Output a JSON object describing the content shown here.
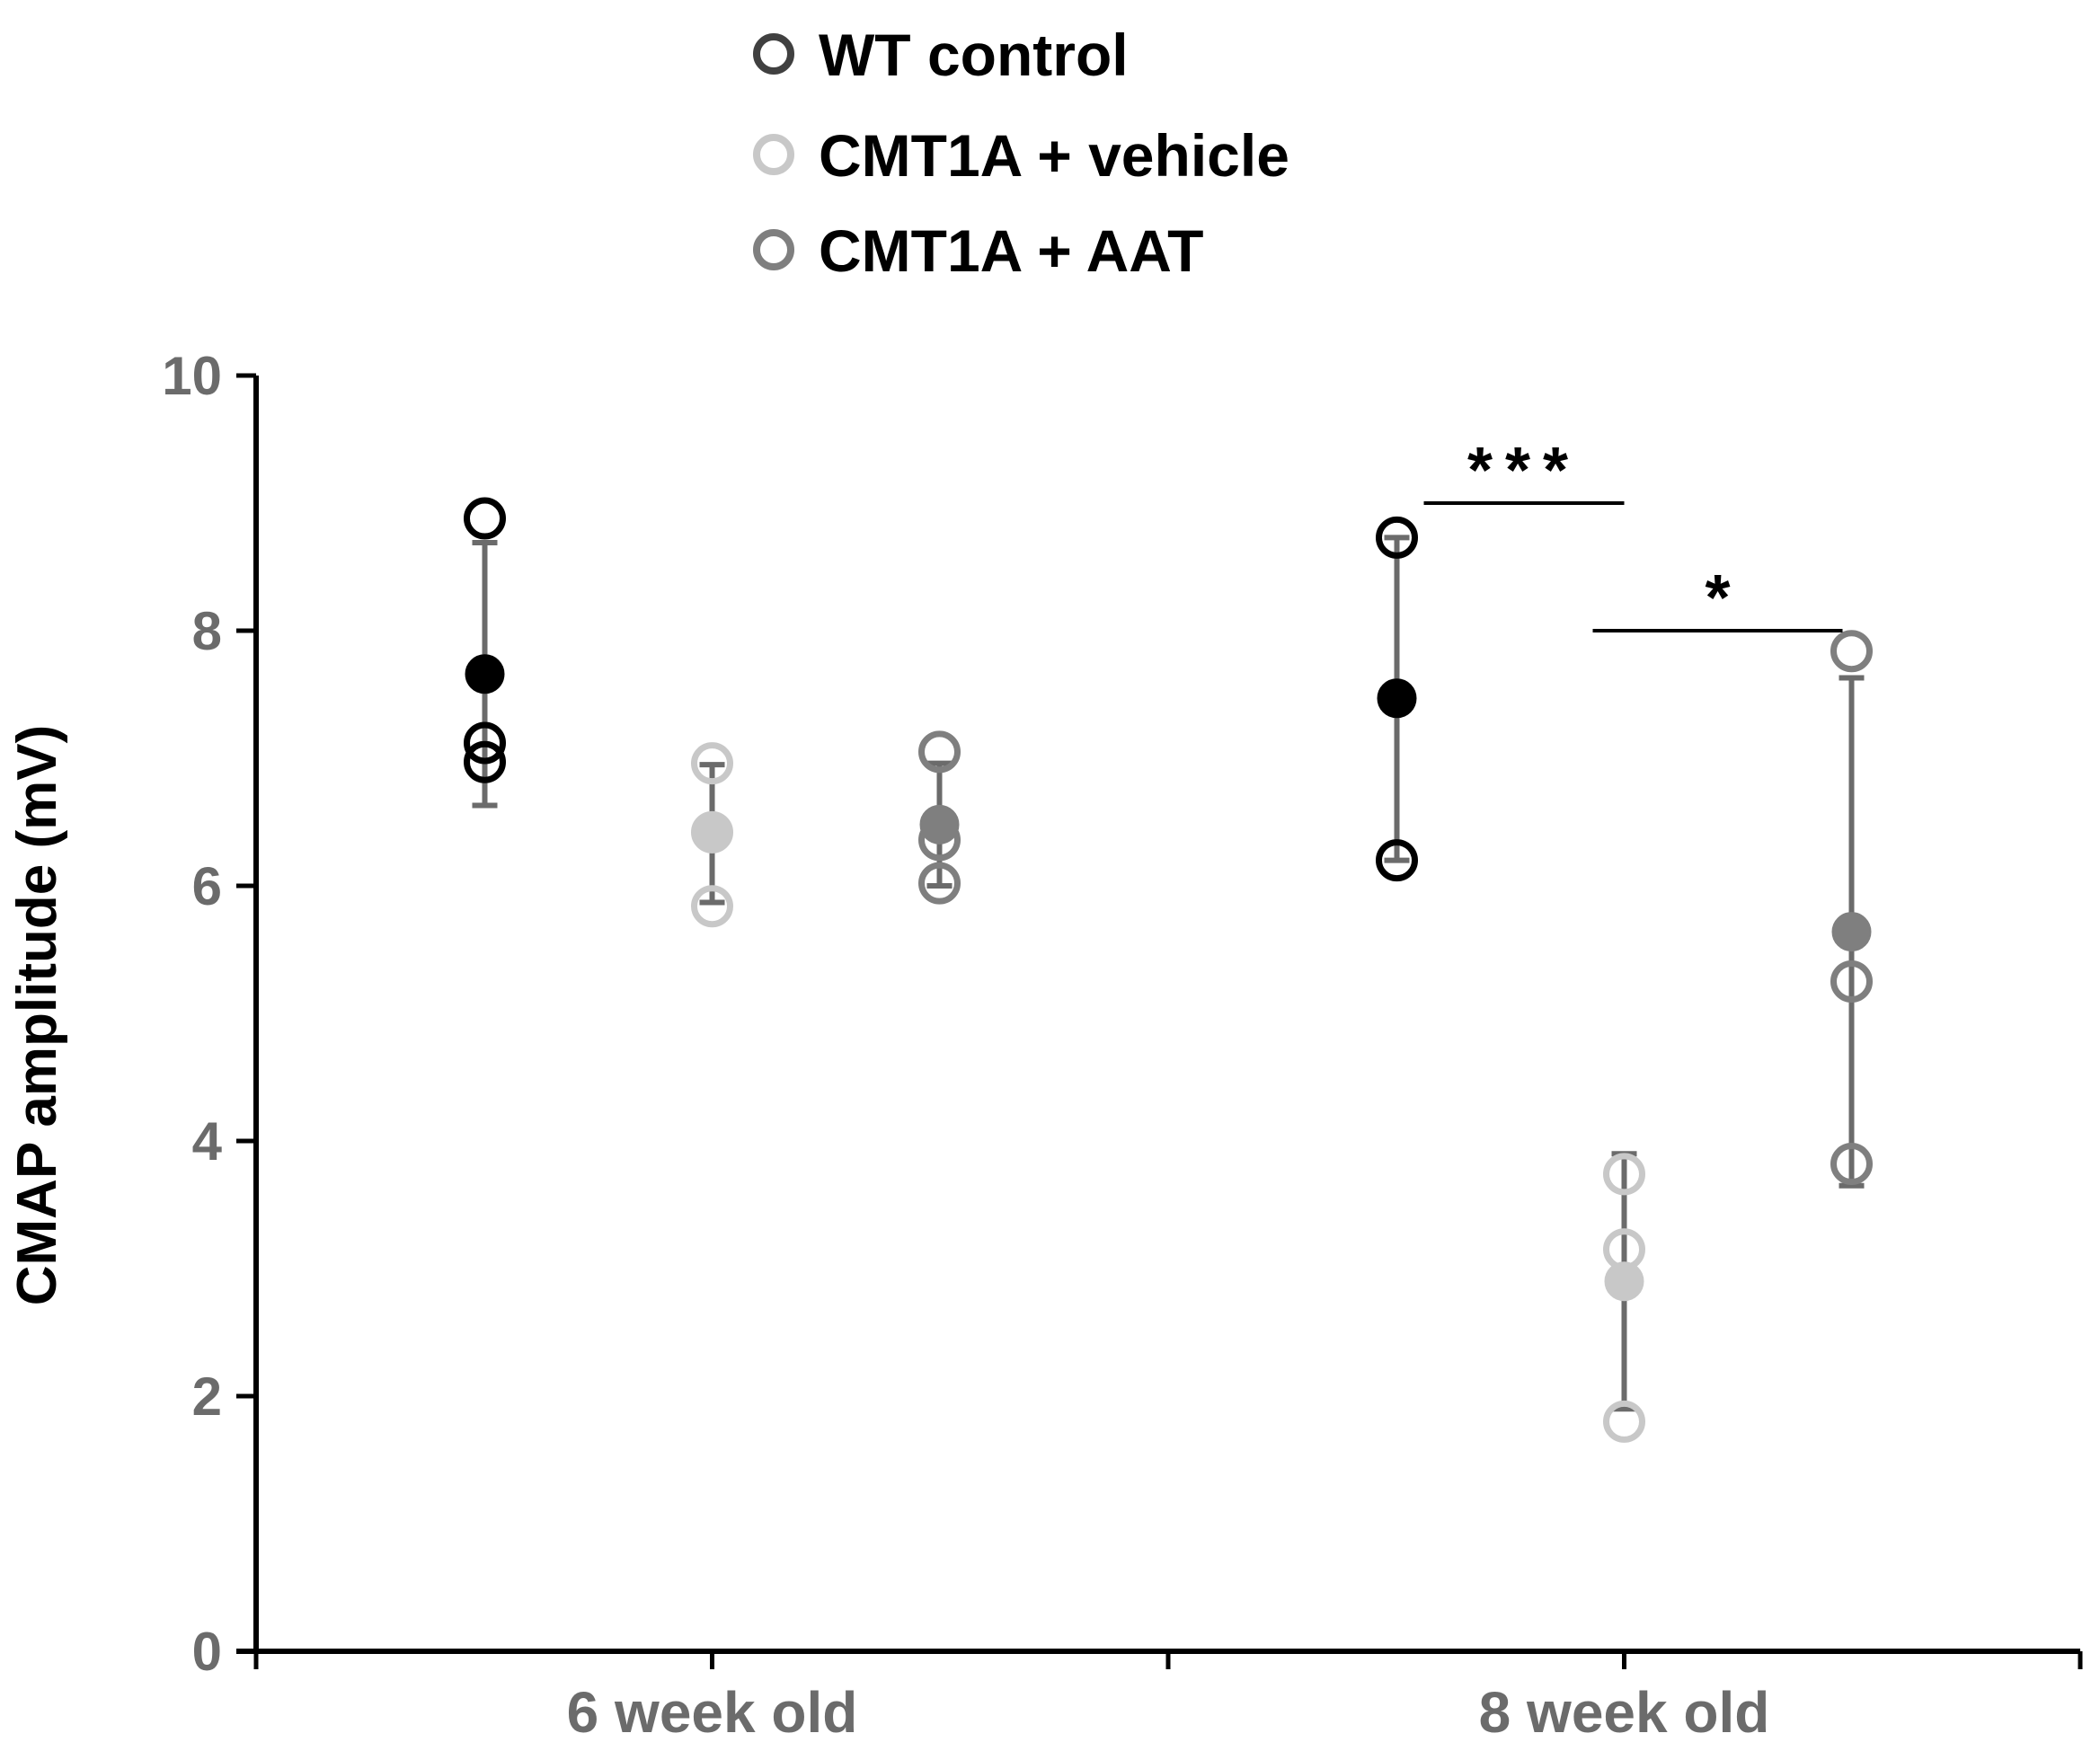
{
  "chart_data": {
    "type": "scatter",
    "title": "",
    "xlabel": "",
    "ylabel": "CMAP amplitude (mV)",
    "ylim": [
      0,
      10
    ],
    "yticks": [
      0,
      2,
      4,
      6,
      8,
      10
    ],
    "categories": [
      "6 week old",
      "8 week old"
    ],
    "legend_position": "top-center",
    "series": [
      {
        "name": "WT control",
        "color": "#000000",
        "legend_color": "#404040",
        "mean_fill": "#000000",
        "groups": [
          {
            "category": "6 week old",
            "points": [
              8.88,
              7.12,
              6.97
            ],
            "mean": 7.66,
            "error": [
              6.63,
              8.69
            ]
          },
          {
            "category": "8 week old",
            "points": [
              8.73,
              6.2
            ],
            "mean": 7.47,
            "error": [
              6.2,
              8.73
            ]
          }
        ]
      },
      {
        "name": "CMT1A + vehicle",
        "color": "#c8c8c8",
        "legend_color": "#c8c8c8",
        "mean_fill": "#c8c8c8",
        "groups": [
          {
            "category": "6 week old",
            "points": [
              6.96,
              5.84,
              6.42
            ],
            "mean": 6.41,
            "error": [
              5.87,
              6.95
            ]
          },
          {
            "category": "8 week old",
            "points": [
              3.74,
              3.15,
              1.8
            ],
            "mean": 2.9,
            "error": [
              1.9,
              3.9
            ]
          }
        ]
      },
      {
        "name": "CMT1A + AAT",
        "color": "#7f7f7f",
        "legend_color": "#7f7f7f",
        "mean_fill": "#7f7f7f",
        "groups": [
          {
            "category": "6 week old",
            "points": [
              7.05,
              6.02,
              6.36
            ],
            "mean": 6.48,
            "error": [
              6.0,
              6.96
            ]
          },
          {
            "category": "8 week old",
            "points": [
              7.84,
              5.25,
              3.82
            ],
            "mean": 5.64,
            "error": [
              3.65,
              7.63
            ]
          }
        ]
      }
    ],
    "annotations": [
      {
        "text": "***",
        "from_series": "WT control",
        "to_series": "CMT1A + vehicle",
        "category": "8 week old",
        "y": 9.0
      },
      {
        "text": "*",
        "from_series": "CMT1A + vehicle",
        "to_series": "CMT1A + AAT",
        "category": "8 week old",
        "y": 8.0
      }
    ],
    "grid": false
  }
}
